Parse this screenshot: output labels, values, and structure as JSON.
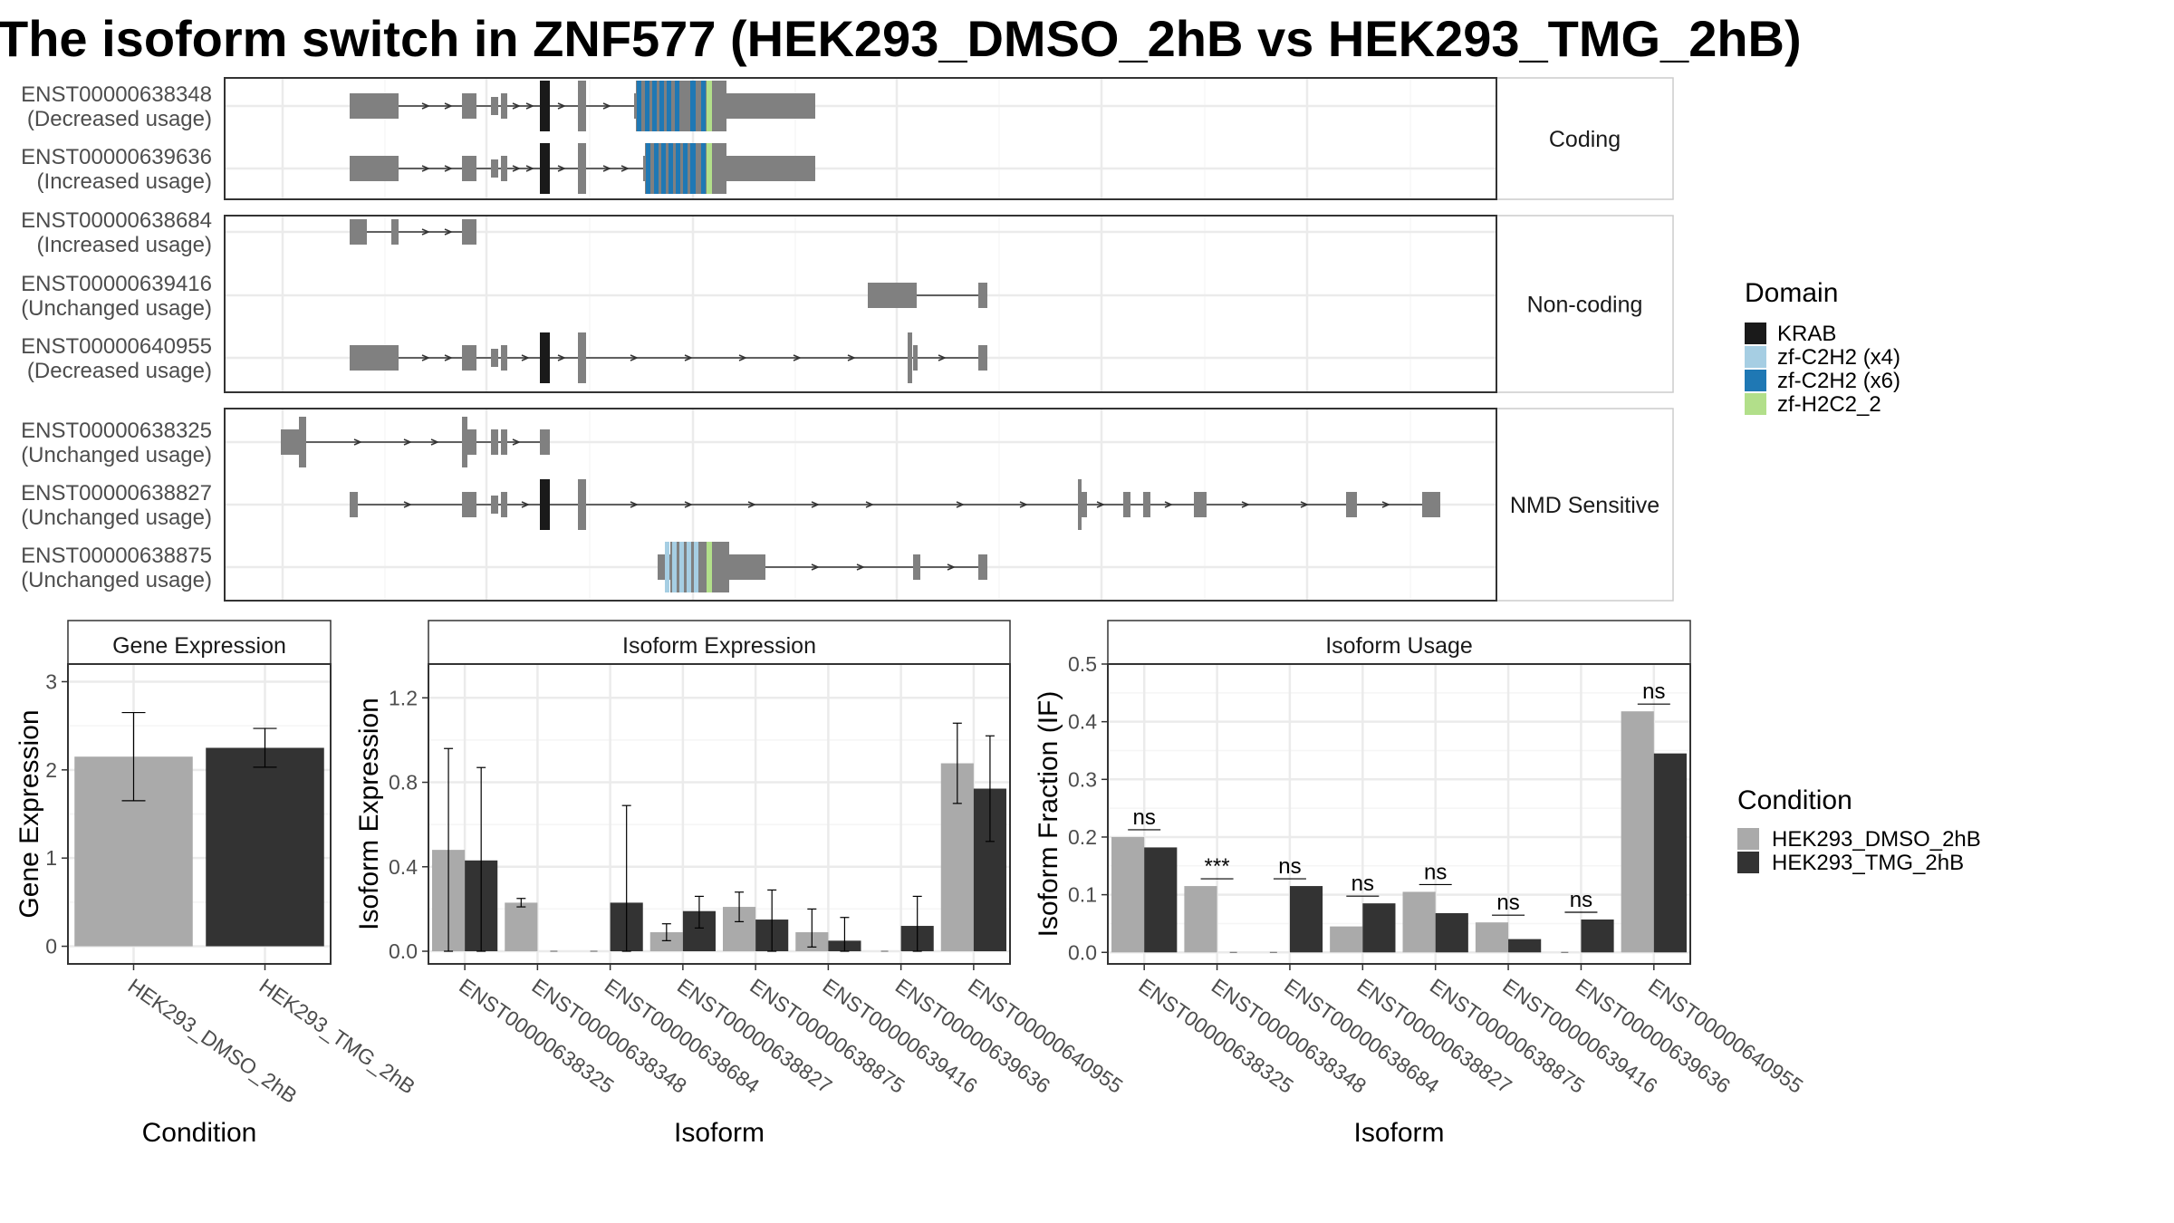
{
  "title": "The isoform switch in ZNF577 (HEK293_DMSO_2hB vs HEK293_TMG_2hB)",
  "colors": {
    "exon": "#808080",
    "KRAB": "#1a1a1a",
    "zf-C2H2 (x4)": "#a6cee3",
    "zf-C2H2 (x6)": "#1f78b4",
    "zf-H2C2_2": "#b2df8a",
    "dmso": "#aaaaaa",
    "tmg": "#333333"
  },
  "transcript_panel": {
    "groups": [
      "Coding",
      "Non-coding",
      "NMD Sensitive"
    ],
    "transcripts": [
      {
        "id": "ENST00000638348",
        "usage": "(Decreased usage)",
        "group": "Coding"
      },
      {
        "id": "ENST00000639636",
        "usage": "(Increased usage)",
        "group": "Coding"
      },
      {
        "id": "ENST00000638684",
        "usage": "(Increased usage)",
        "group": "Non-coding"
      },
      {
        "id": "ENST00000639416",
        "usage": "(Unchanged usage)",
        "group": "Non-coding"
      },
      {
        "id": "ENST00000640955",
        "usage": "(Decreased usage)",
        "group": "Non-coding"
      },
      {
        "id": "ENST00000638325",
        "usage": "(Unchanged usage)",
        "group": "NMD Sensitive"
      },
      {
        "id": "ENST00000638827",
        "usage": "(Unchanged usage)",
        "group": "NMD Sensitive"
      },
      {
        "id": "ENST00000638875",
        "usage": "(Unchanged usage)",
        "group": "NMD Sensitive"
      }
    ]
  },
  "legend_domain": {
    "title": "Domain",
    "items": [
      "KRAB",
      "zf-C2H2 (x4)",
      "zf-C2H2 (x6)",
      "zf-H2C2_2"
    ]
  },
  "legend_condition": {
    "title": "Condition",
    "items": [
      "HEK293_DMSO_2hB",
      "HEK293_TMG_2hB"
    ]
  },
  "chart_data": [
    {
      "type": "bar",
      "title": "Gene Expression",
      "xlabel": "Condition",
      "ylabel": "Gene Expression",
      "categories": [
        "HEK293_DMSO_2hB",
        "HEK293_TMG_2hB"
      ],
      "values": [
        2.15,
        2.25
      ],
      "error_low": [
        1.65,
        2.03
      ],
      "error_high": [
        2.65,
        2.47
      ],
      "ylim": [
        -0.2,
        3.2
      ],
      "yticks": [
        "0",
        "1",
        "2",
        "3"
      ],
      "grid": true
    },
    {
      "type": "bar",
      "title": "Isoform Expression",
      "xlabel": "Isoform",
      "ylabel": "Isoform Expression",
      "categories": [
        "ENST00000638325",
        "ENST00000638348",
        "ENST00000638684",
        "ENST00000638827",
        "ENST00000638875",
        "ENST00000639416",
        "ENST00000639636",
        "ENST00000640955"
      ],
      "series": [
        {
          "name": "HEK293_DMSO_2hB",
          "values": [
            0.48,
            0.23,
            0.0,
            0.09,
            0.21,
            0.09,
            0.0,
            0.89
          ],
          "error_low": [
            0.0,
            0.21,
            0.0,
            0.05,
            0.14,
            0.02,
            0.0,
            0.7
          ],
          "error_high": [
            0.96,
            0.25,
            0.0,
            0.13,
            0.28,
            0.2,
            0.0,
            1.08
          ]
        },
        {
          "name": "HEK293_TMG_2hB",
          "values": [
            0.43,
            0.0,
            0.23,
            0.19,
            0.15,
            0.05,
            0.12,
            0.77
          ],
          "error_low": [
            0.0,
            0.0,
            0.0,
            0.11,
            0.0,
            0.0,
            0.0,
            0.52
          ],
          "error_high": [
            0.87,
            0.0,
            0.69,
            0.26,
            0.29,
            0.16,
            0.26,
            1.02
          ]
        }
      ],
      "ylim": [
        -0.06,
        1.36
      ],
      "yticks": [
        "0.0",
        "0.4",
        "0.8",
        "1.2"
      ],
      "grid": true
    },
    {
      "type": "bar",
      "title": "Isoform Usage",
      "xlabel": "Isoform",
      "ylabel": "Isoform Fraction (IF)",
      "categories": [
        "ENST00000638325",
        "ENST00000638348",
        "ENST00000638684",
        "ENST00000638827",
        "ENST00000638875",
        "ENST00000639416",
        "ENST00000639636",
        "ENST00000640955"
      ],
      "series": [
        {
          "name": "HEK293_DMSO_2hB",
          "values": [
            0.2,
            0.115,
            0.0,
            0.045,
            0.105,
            0.052,
            0.0,
            0.418
          ]
        },
        {
          "name": "HEK293_TMG_2hB",
          "values": [
            0.182,
            0.0,
            0.115,
            0.085,
            0.068,
            0.023,
            0.057,
            0.345
          ]
        }
      ],
      "significance": [
        "ns",
        "***",
        "ns",
        "ns",
        "ns",
        "ns",
        "ns",
        "ns"
      ],
      "ylim": [
        -0.02,
        0.5
      ],
      "yticks": [
        "0.0",
        "0.1",
        "0.2",
        "0.3",
        "0.4",
        "0.5"
      ],
      "grid": true
    }
  ]
}
